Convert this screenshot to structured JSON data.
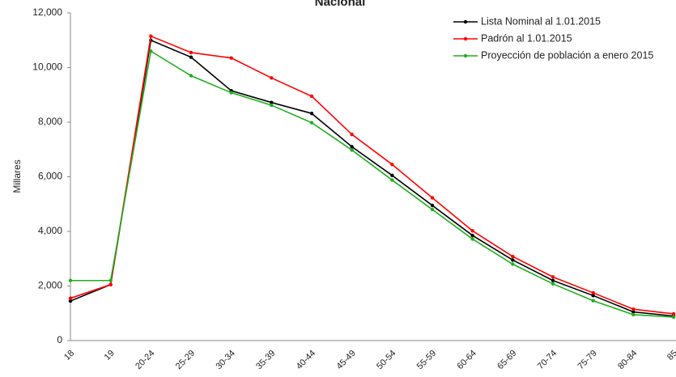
{
  "chart_data": {
    "type": "line",
    "title": "Nacional",
    "y_label": "Millares",
    "categories": [
      "18",
      "19",
      "20-24",
      "25-29",
      "30-34",
      "35-39",
      "40-44",
      "45-49",
      "50-54",
      "55-59",
      "60-64",
      "65-69",
      "70-74",
      "75-79",
      "80-84",
      "85"
    ],
    "series": [
      {
        "name": "Lista Nominal al 1.01.2015",
        "color": "#000000",
        "values": [
          1450,
          2050,
          11000,
          10380,
          9150,
          8720,
          8320,
          7100,
          6050,
          4950,
          3850,
          2950,
          2200,
          1650,
          1050,
          900
        ]
      },
      {
        "name": "Padrón al 1.01.2015",
        "color": "#ff0000",
        "values": [
          1550,
          2050,
          11150,
          10550,
          10350,
          9620,
          8950,
          7550,
          6450,
          5230,
          4020,
          3080,
          2330,
          1750,
          1150,
          980
        ]
      },
      {
        "name": "Proyección de población a enero 2015",
        "color": "#1fae1f",
        "values": [
          2200,
          2200,
          10600,
          9700,
          9080,
          8620,
          7980,
          6980,
          5880,
          4800,
          3720,
          2800,
          2080,
          1460,
          950,
          860
        ]
      }
    ],
    "ylim": [
      0,
      12000
    ],
    "yticks": [
      0,
      {
        "value": 2000,
        "label": "2,000"
      },
      {
        "value": 4000,
        "label": "4,000"
      },
      {
        "value": 6000,
        "label": "6,000"
      },
      {
        "value": 8000,
        "label": "8,000"
      },
      {
        "value": 10000,
        "label": "10,000"
      },
      {
        "value": 12000,
        "label": "12,000"
      }
    ],
    "grid": false,
    "legend": "top-right"
  }
}
